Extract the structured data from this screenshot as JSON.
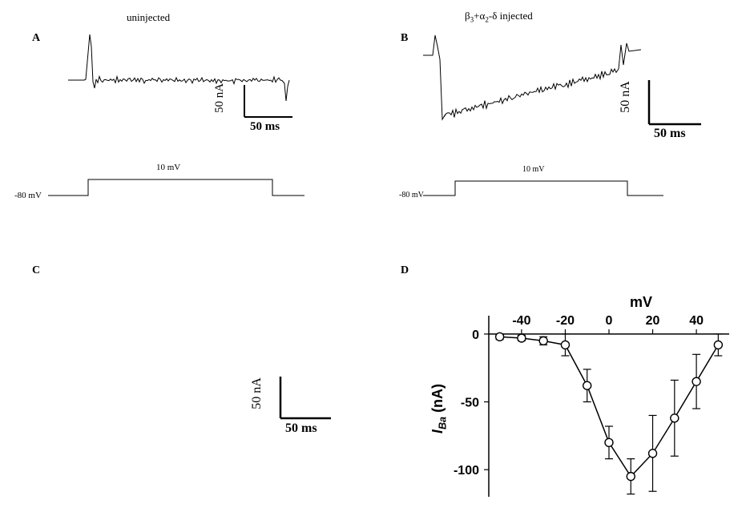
{
  "colors": {
    "bg": "#ffffff",
    "stroke": "#000000",
    "text": "#000000"
  },
  "fonts": {
    "label_size": 14,
    "title_size": 13,
    "scale_size": 14,
    "small_size": 11
  },
  "panelA": {
    "label": "A",
    "title": "uninjected",
    "scale_v": "50 nA",
    "scale_h": "50 ms",
    "step_top": "10 mV",
    "step_base": "-80 mV"
  },
  "panelB": {
    "label": "B",
    "title_html": "β<sub>3</sub>+α<sub>2</sub>-δ injected",
    "scale_v": "50 nA",
    "scale_h": "50 ms",
    "step_top": "10 mV",
    "step_base": "-80 mV"
  },
  "panelC": {
    "label": "C",
    "scale_v": "50 nA",
    "scale_h": "50 ms"
  },
  "panelD": {
    "label": "D",
    "type": "scatter-line",
    "x_label": "mV",
    "y_label_html": "<i>I<sub>Ba</sub></i> (nA)",
    "xlim": [
      -55,
      55
    ],
    "ylim": [
      -120,
      10
    ],
    "x_ticks": [
      -40,
      -20,
      0,
      20,
      40
    ],
    "y_ticks": [
      0,
      -50,
      -100
    ],
    "x_tick_labels": [
      "-40",
      "-20",
      "0",
      "20",
      "40"
    ],
    "y_tick_labels": [
      "0",
      "-50",
      "-100"
    ],
    "marker": "open-circle",
    "marker_size": 10,
    "marker_stroke": "#000000",
    "marker_fill": "#ffffff",
    "line_color": "#000000",
    "line_width": 1.5,
    "errorbar_color": "#000000",
    "points": [
      {
        "x": -50,
        "y": -2,
        "err": 2
      },
      {
        "x": -40,
        "y": -3,
        "err": 2
      },
      {
        "x": -30,
        "y": -5,
        "err": 3
      },
      {
        "x": -20,
        "y": -8,
        "err": 8
      },
      {
        "x": -10,
        "y": -38,
        "err": 12
      },
      {
        "x": 0,
        "y": -80,
        "err": 12
      },
      {
        "x": 10,
        "y": -105,
        "err": 13
      },
      {
        "x": 20,
        "y": -88,
        "err": 28
      },
      {
        "x": 30,
        "y": -62,
        "err": 28
      },
      {
        "x": 40,
        "y": -35,
        "err": 20
      },
      {
        "x": 50,
        "y": -8,
        "err": 8
      }
    ],
    "axis_label_fontsize": 18,
    "tick_label_fontsize": 16
  },
  "scale_bars": {
    "line_width_outer": 2,
    "line_width_inner": 1
  }
}
